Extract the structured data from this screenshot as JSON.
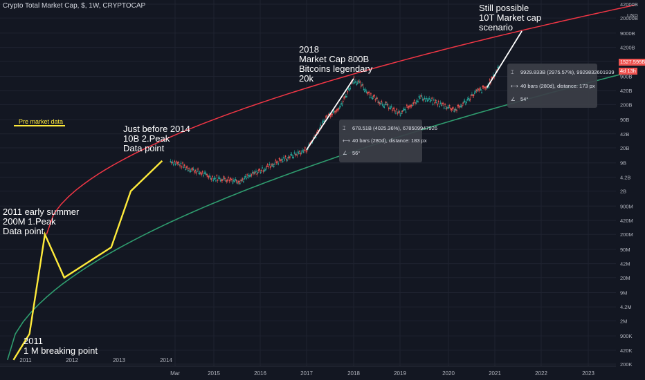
{
  "header": {
    "title": "Crypto Total Market Cap, $, 1W, CRYPTOCAP"
  },
  "annotations": {
    "pre_market": "Pre market data",
    "early2011": "2011 early summer\n200M 1.Peak\nData point",
    "just2014": "Just before 2014\n10B 2.Peak\nData point",
    "y2018": "2018\nMarket Cap 800B\nBitcoins legendary\n20k",
    "still": "Still possible\n10T Market cap\nscenario",
    "break2011": "2011\n1 M breaking point"
  },
  "tooltips": [
    {
      "value": "678.51B (4025.36%), 678509947926",
      "bars": "40 bars (280d), distance: 183 px",
      "angle": "56°"
    },
    {
      "value": "9929.833B (2975.57%), 9929832601939",
      "bars": "40 bars (280d), distance: 173 px",
      "angle": "54°"
    }
  ],
  "price_tags": {
    "price": "1527.595B",
    "countdown": "4d 13h"
  },
  "colors": {
    "background": "#131722",
    "resistance": "#f23645",
    "support": "#2f9d6f",
    "yellow": "#ffeb3b",
    "white": "#ffffff",
    "candle_up": "#26a69a",
    "candle_down": "#ef5350"
  },
  "chart_data": {
    "type": "line",
    "y_scale": "log",
    "y_unit": "USD",
    "y_ticks": [
      "42000B",
      "20000B",
      "9000B",
      "4200B",
      "2000B",
      "900B",
      "420B",
      "200B",
      "90B",
      "42B",
      "20B",
      "9B",
      "4.2B",
      "2B",
      "900M",
      "420M",
      "200M",
      "90M",
      "42M",
      "20M",
      "9M",
      "4.2M",
      "2M",
      "900K",
      "420K",
      "200K"
    ],
    "x_ticks_top_row": [
      "2011",
      "2012",
      "2013",
      "2014"
    ],
    "x_ticks_bottom_row": [
      "Mar",
      "2015",
      "2016",
      "2017",
      "2018",
      "2019",
      "2020",
      "2021",
      "2022",
      "2023"
    ],
    "series": [
      {
        "points": [
          [
            "2010-11",
            250000
          ],
          [
            "2011-02",
            1000000
          ],
          [
            "2011-06",
            200000000
          ],
          [
            "2011-11",
            20000000
          ],
          [
            "2012-11",
            100000000
          ],
          [
            "2013-04",
            2000000000
          ],
          [
            "2013-12",
            10000000000
          ]
        ]
      },
      {
        "points": [
          [
            "2017-01",
            18000000000
          ],
          [
            "2018-01",
            800000000000
          ]
        ]
      },
      {
        "points": [
          [
            "2020-11",
            500000000000
          ],
          [
            "2021-08",
            10000000000000
          ]
        ]
      },
      {
        "points": [
          [
            "2014-02",
            10000000000
          ],
          [
            "2014-06",
            7000000000
          ],
          [
            "2015-01",
            4000000000
          ],
          [
            "2015-08",
            3500000000
          ],
          [
            "2016-06",
            10000000000
          ],
          [
            "2017-01",
            18000000000
          ],
          [
            "2017-06",
            100000000000
          ],
          [
            "2017-10",
            200000000000
          ],
          [
            "2018-01",
            800000000000
          ],
          [
            "2018-06",
            300000000000
          ],
          [
            "2019-01",
            120000000000
          ],
          [
            "2019-06",
            300000000000
          ],
          [
            "2020-03",
            150000000000
          ],
          [
            "2020-08",
            380000000000
          ],
          [
            "2020-11",
            500000000000
          ],
          [
            "2021-01",
            1000000000000
          ],
          [
            "2021-02",
            1527595000000
          ]
        ]
      }
    ]
  }
}
